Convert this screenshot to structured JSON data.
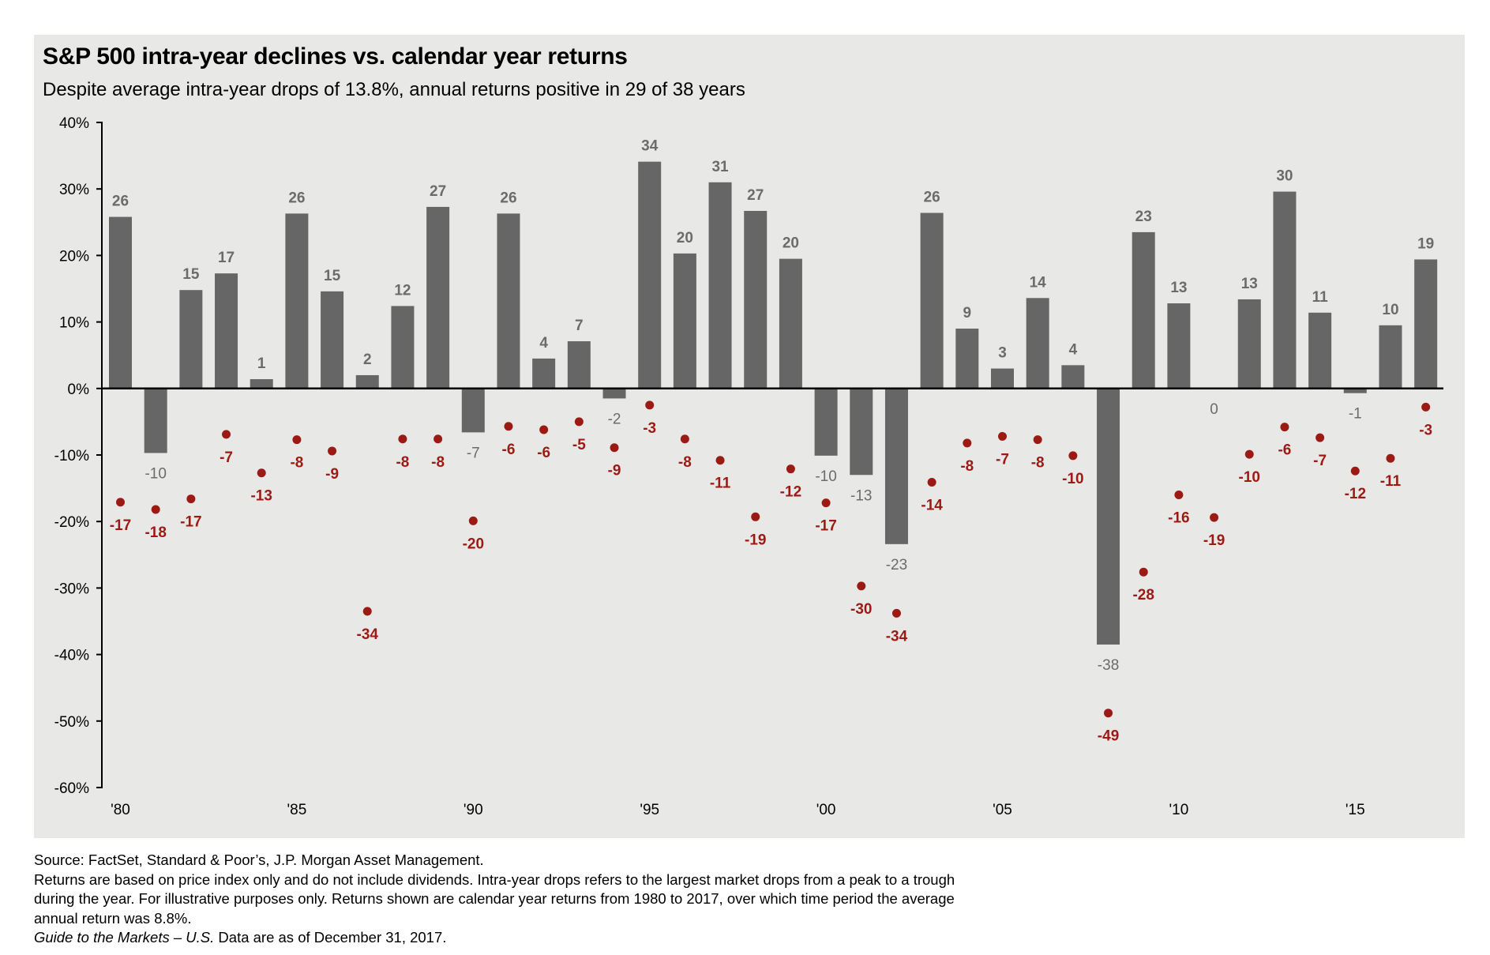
{
  "header": {
    "title": "S&P 500 intra-year declines vs. calendar year returns",
    "subtitle": "Despite average intra-year drops of 13.8%, annual returns positive in 29 of 38 years"
  },
  "footnotes": {
    "source": "Source: FactSet, Standard & Poor’s, J.P. Morgan Asset Management.",
    "line2": "Returns are based on price index only and do not include dividends. Intra-year drops refers to the largest market drops from a peak to a trough",
    "line3": "during the year. For illustrative purposes only. Returns shown are calendar year returns from 1980 to 2017, over which time period the average",
    "line4": "annual return was 8.8%.",
    "guide_italic": "Guide to the Markets – U.S.",
    "guide_rest": " Data are as of December 31, 2017."
  },
  "colors": {
    "panel_bg": "#e8e8e6",
    "bar": "#666666",
    "bar_label": "#6b6b6b",
    "drop": "#9b1b14",
    "axis": "#000000"
  },
  "chart_data": {
    "type": "bar",
    "title": "S&P 500 intra-year declines vs. calendar year returns",
    "subtitle": "Despite average intra-year drops of 13.8%, annual returns positive in 29 of 38 years",
    "xlabel": "",
    "ylabel": "",
    "ylim": [
      -60,
      40
    ],
    "yticks": [
      40,
      30,
      20,
      10,
      0,
      -10,
      -20,
      -30,
      -40,
      -50,
      -60
    ],
    "ytick_labels": [
      "40%",
      "30%",
      "20%",
      "10%",
      "0%",
      "-10%",
      "-20%",
      "-30%",
      "-40%",
      "-50%",
      "-60%"
    ],
    "grid": false,
    "legend": "none",
    "x": [
      1980,
      1981,
      1982,
      1983,
      1984,
      1985,
      1986,
      1987,
      1988,
      1989,
      1990,
      1991,
      1992,
      1993,
      1994,
      1995,
      1996,
      1997,
      1998,
      1999,
      2000,
      2001,
      2002,
      2003,
      2004,
      2005,
      2006,
      2007,
      2008,
      2009,
      2010,
      2011,
      2012,
      2013,
      2014,
      2015,
      2016,
      2017
    ],
    "xtick_labels": [
      {
        "year": 1980,
        "label": "'80"
      },
      {
        "year": 1985,
        "label": "'85"
      },
      {
        "year": 1990,
        "label": "'90"
      },
      {
        "year": 1995,
        "label": "'95"
      },
      {
        "year": 2000,
        "label": "'00"
      },
      {
        "year": 2005,
        "label": "'05"
      },
      {
        "year": 2010,
        "label": "'10"
      },
      {
        "year": 2015,
        "label": "'15"
      }
    ],
    "series": [
      {
        "name": "Calendar year return",
        "kind": "bar",
        "values": [
          25.8,
          -9.7,
          14.8,
          17.3,
          1.4,
          26.3,
          14.6,
          2.0,
          12.4,
          27.3,
          -6.6,
          26.3,
          4.5,
          7.1,
          -1.5,
          34.1,
          20.3,
          31.0,
          26.7,
          19.5,
          -10.1,
          -13.0,
          -23.4,
          26.4,
          9.0,
          3.0,
          13.6,
          3.5,
          -38.5,
          23.5,
          12.8,
          0.0,
          13.4,
          29.6,
          11.4,
          -0.7,
          9.5,
          19.4
        ],
        "labels": [
          "26",
          "-10",
          "15",
          "17",
          "1",
          "26",
          "15",
          "2",
          "12",
          "27",
          "-7",
          "26",
          "4",
          "7",
          "-2",
          "34",
          "20",
          "31",
          "27",
          "20",
          "-10",
          "-13",
          "-23",
          "26",
          "9",
          "3",
          "14",
          "4",
          "-38",
          "23",
          "13",
          "0",
          "13",
          "30",
          "11",
          "-1",
          "10",
          "19"
        ]
      },
      {
        "name": "Intra-year decline",
        "kind": "scatter",
        "values": [
          -17.1,
          -18.2,
          -16.6,
          -6.9,
          -12.7,
          -7.7,
          -9.4,
          -33.5,
          -7.6,
          -7.6,
          -19.9,
          -5.7,
          -6.2,
          -5.0,
          -8.9,
          -2.5,
          -7.6,
          -10.8,
          -19.3,
          -12.1,
          -17.2,
          -29.7,
          -33.8,
          -14.1,
          -8.2,
          -7.2,
          -7.7,
          -10.1,
          -48.8,
          -27.6,
          -16.0,
          -19.4,
          -9.9,
          -5.8,
          -7.4,
          -12.4,
          -10.5,
          -2.8
        ],
        "labels": [
          "-17",
          "-18",
          "-17",
          "-7",
          "-13",
          "-8",
          "-9",
          "-34",
          "-8",
          "-8",
          "-20",
          "-6",
          "-6",
          "-5",
          "-9",
          "-3",
          "-8",
          "-11",
          "-19",
          "-12",
          "-17",
          "-30",
          "-34",
          "-14",
          "-8",
          "-7",
          "-8",
          "-10",
          "-49",
          "-28",
          "-16",
          "-19",
          "-10",
          "-6",
          "-7",
          "-12",
          "-11",
          "-3"
        ]
      }
    ]
  }
}
